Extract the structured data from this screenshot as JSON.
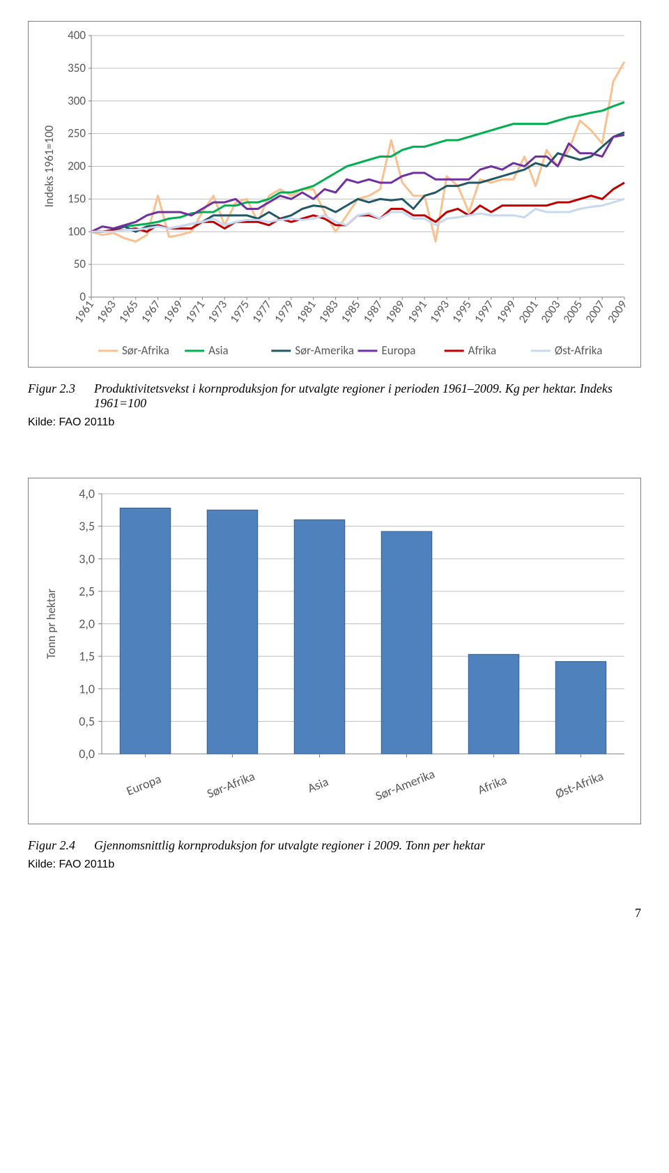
{
  "page_number": "7",
  "figure1": {
    "caption_label": "Figur 2.3",
    "caption_text": "Produktivitetsvekst i kornproduksjon for utvalgte regioner i perioden 1961–2009. Kg per hektar. Indeks 1961=100",
    "source": "Kilde: FAO 2011b",
    "chart": {
      "type": "line",
      "ylabel": "Indeks 1961=100",
      "ylim": [
        0,
        400
      ],
      "ytick_step": 50,
      "y_ticks": [
        0,
        50,
        100,
        150,
        200,
        250,
        300,
        350,
        400
      ],
      "x_years": [
        1961,
        1962,
        1963,
        1964,
        1965,
        1966,
        1967,
        1968,
        1969,
        1970,
        1971,
        1972,
        1973,
        1974,
        1975,
        1976,
        1977,
        1978,
        1979,
        1980,
        1981,
        1982,
        1983,
        1984,
        1985,
        1986,
        1987,
        1988,
        1989,
        1990,
        1991,
        1992,
        1993,
        1994,
        1995,
        1996,
        1997,
        1998,
        1999,
        2000,
        2001,
        2002,
        2003,
        2004,
        2005,
        2006,
        2007,
        2008,
        2009
      ],
      "x_tick_labels": [
        "1961",
        "1963",
        "1965",
        "1967",
        "1969",
        "1971",
        "1973",
        "1975",
        "1977",
        "1979",
        "1981",
        "1983",
        "1985",
        "1987",
        "1989",
        "1991",
        "1993",
        "1995",
        "1997",
        "1999",
        "2001",
        "2003",
        "2005",
        "2007",
        "2009"
      ],
      "background_color": "#ffffff",
      "grid_color": "#bfbfbf",
      "axis_color": "#808080",
      "line_width": 3,
      "series": [
        {
          "name": "Sør-Afrika",
          "color": "#fac090",
          "values": [
            100,
            95,
            98,
            90,
            85,
            95,
            155,
            92,
            95,
            100,
            130,
            155,
            110,
            145,
            150,
            115,
            155,
            165,
            155,
            165,
            165,
            130,
            100,
            125,
            150,
            155,
            165,
            240,
            175,
            155,
            155,
            85,
            185,
            170,
            130,
            180,
            175,
            180,
            180,
            215,
            170,
            225,
            200,
            225,
            270,
            255,
            235,
            330,
            360
          ]
        },
        {
          "name": "Asia",
          "color": "#00b050",
          "values": [
            100,
            100,
            103,
            108,
            110,
            112,
            115,
            120,
            122,
            128,
            130,
            130,
            140,
            140,
            145,
            145,
            150,
            160,
            160,
            165,
            170,
            180,
            190,
            200,
            205,
            210,
            215,
            215,
            225,
            230,
            230,
            235,
            240,
            240,
            245,
            250,
            255,
            260,
            265,
            265,
            265,
            265,
            270,
            275,
            278,
            282,
            285,
            292,
            298
          ]
        },
        {
          "name": "Sør-Amerika",
          "color": "#205867",
          "values": [
            100,
            100,
            103,
            108,
            100,
            108,
            110,
            105,
            108,
            112,
            115,
            125,
            125,
            125,
            125,
            120,
            130,
            120,
            125,
            135,
            140,
            138,
            130,
            140,
            150,
            145,
            150,
            148,
            150,
            135,
            155,
            160,
            170,
            170,
            175,
            175,
            180,
            185,
            190,
            195,
            205,
            200,
            220,
            215,
            210,
            215,
            230,
            245,
            252
          ]
        },
        {
          "name": "Europa",
          "color": "#7030a0",
          "values": [
            100,
            108,
            105,
            110,
            115,
            125,
            130,
            130,
            130,
            125,
            135,
            145,
            145,
            150,
            135,
            135,
            145,
            155,
            150,
            160,
            150,
            165,
            160,
            180,
            175,
            180,
            175,
            175,
            185,
            190,
            190,
            180,
            180,
            180,
            180,
            195,
            200,
            195,
            205,
            200,
            215,
            215,
            200,
            235,
            220,
            220,
            215,
            245,
            248
          ]
        },
        {
          "name": "Afrika",
          "color": "#c00000",
          "values": [
            100,
            100,
            102,
            103,
            105,
            100,
            110,
            105,
            105,
            105,
            115,
            115,
            105,
            115,
            115,
            115,
            110,
            120,
            115,
            120,
            125,
            120,
            110,
            110,
            125,
            125,
            120,
            135,
            135,
            125,
            125,
            115,
            130,
            135,
            125,
            140,
            130,
            140,
            140,
            140,
            140,
            140,
            145,
            145,
            150,
            155,
            150,
            165,
            175
          ]
        },
        {
          "name": "Øst-Afrika",
          "color": "#c6d9f1",
          "values": [
            100,
            100,
            100,
            103,
            103,
            105,
            108,
            105,
            108,
            112,
            115,
            120,
            110,
            115,
            118,
            118,
            115,
            118,
            120,
            118,
            120,
            125,
            115,
            110,
            125,
            128,
            120,
            130,
            130,
            120,
            120,
            110,
            120,
            122,
            125,
            128,
            125,
            125,
            125,
            122,
            135,
            130,
            130,
            130,
            135,
            138,
            140,
            145,
            150
          ]
        }
      ]
    }
  },
  "figure2": {
    "caption_label": "Figur 2.4",
    "caption_text": "Gjennomsnittlig kornproduksjon for utvalgte regioner i 2009. Tonn per hektar",
    "source": "Kilde: FAO 2011b",
    "chart": {
      "type": "bar",
      "ylabel": "Tonn pr hektar",
      "ylim": [
        0,
        4.0
      ],
      "y_ticks": [
        "0,0",
        "0,5",
        "1,0",
        "1,5",
        "2,0",
        "2,5",
        "3,0",
        "3,5",
        "4,0"
      ],
      "y_tick_vals": [
        0,
        0.5,
        1.0,
        1.5,
        2.0,
        2.5,
        3.0,
        3.5,
        4.0
      ],
      "categories": [
        "Europa",
        "Sør-Afrika",
        "Asia",
        "Sør-Amerika",
        "Afrika",
        "Øst-Afrika"
      ],
      "values": [
        3.78,
        3.75,
        3.6,
        3.42,
        1.53,
        1.42
      ],
      "bar_color": "#4f81bd",
      "bar_border": "#385d8a",
      "background_color": "#ffffff",
      "grid_color": "#bfbfbf",
      "axis_color": "#808080",
      "bar_width": 0.58,
      "label_fontsize": 18
    }
  }
}
